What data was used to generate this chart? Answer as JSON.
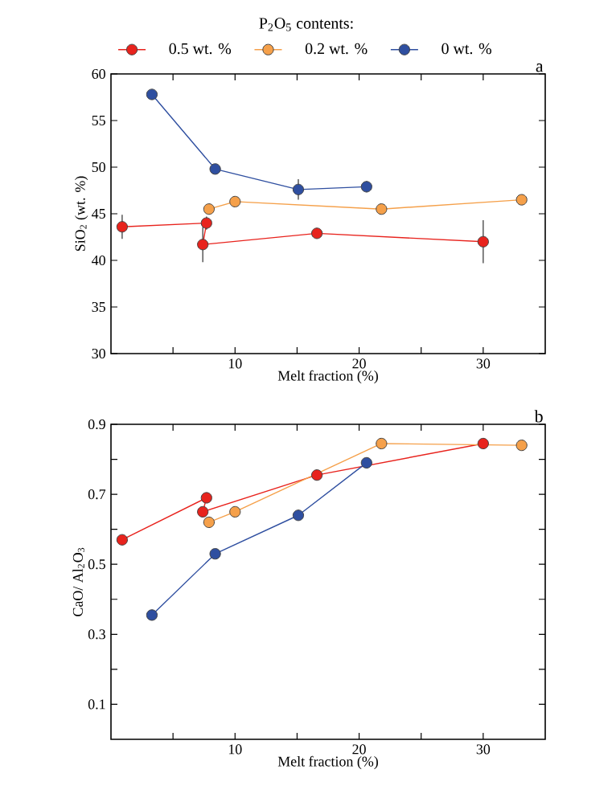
{
  "chart_data": [
    {
      "type": "line",
      "legend_title": "P$_{2}$O$_{5}$ contents:",
      "xlabel": "Melt fraction (%)",
      "ylabel": "SiO$_{2}$ (wt. %)",
      "annotations": [
        "a"
      ],
      "legend": "top",
      "marker": "circle",
      "line_style": "solid",
      "grid": false,
      "xlim": [
        0,
        35
      ],
      "xticks": [
        {
          "value": 5,
          "label": null
        },
        10,
        {
          "value": 15,
          "label": null
        },
        20,
        {
          "value": 25,
          "label": null
        },
        30
      ],
      "ylim": [
        30,
        60
      ],
      "yticks": [
        30,
        35,
        40,
        45,
        50,
        55,
        60
      ],
      "series": [
        {
          "name": "0.5 wt. %",
          "color": "#e8231d",
          "x": [
            0.9,
            7.7,
            7.4,
            16.6,
            30.0
          ],
          "values": [
            43.6,
            44.0,
            41.7,
            42.9,
            42.0
          ],
          "errors": [
            1.3,
            0.7,
            1.9,
            null,
            2.3
          ]
        },
        {
          "name": "0.2 wt. %",
          "color": "#f5a04a",
          "x": [
            7.9,
            10.0,
            21.8,
            33.1
          ],
          "values": [
            45.5,
            46.3,
            45.5,
            46.5
          ]
        },
        {
          "name": "0 wt. %",
          "color": "#2f4fa0",
          "x": [
            3.3,
            8.4,
            15.1,
            20.6
          ],
          "values": [
            57.8,
            49.8,
            47.6,
            47.9
          ],
          "errors": [
            null,
            null,
            1.1,
            0.6
          ]
        }
      ]
    },
    {
      "type": "line",
      "xlabel": "Melt fraction (%)",
      "ylabel": "CaO/ Al$_{2}$O$_{3}$",
      "annotations": [
        "b"
      ],
      "marker": "circle",
      "line_style": "solid",
      "grid": false,
      "xlim": [
        0,
        35
      ],
      "xticks": [
        {
          "value": 5,
          "label": null
        },
        10,
        {
          "value": 15,
          "label": null
        },
        20,
        {
          "value": 25,
          "label": null
        },
        30
      ],
      "ylim": [
        0,
        0.9
      ],
      "yticks": [
        {
          "value": 0.1,
          "label": "0.1"
        },
        {
          "value": 0.2,
          "label": null
        },
        {
          "value": 0.3,
          "label": "0.3"
        },
        {
          "value": 0.4,
          "label": null
        },
        {
          "value": 0.5,
          "label": "0.5"
        },
        {
          "value": 0.6,
          "label": null
        },
        {
          "value": 0.7,
          "label": "0.7"
        },
        {
          "value": 0.8,
          "label": null
        },
        {
          "value": 0.9,
          "label": "0.9"
        }
      ],
      "series": [
        {
          "color": "#e8231d",
          "x": [
            0.9,
            7.7,
            7.4,
            16.6,
            30.0
          ],
          "values": [
            0.57,
            0.69,
            0.65,
            0.755,
            0.845
          ]
        },
        {
          "color": "#f5a04a",
          "x": [
            7.9,
            10.0,
            21.8,
            33.1
          ],
          "values": [
            0.62,
            0.65,
            0.845,
            0.84
          ]
        },
        {
          "color": "#2f4fa0",
          "x": [
            3.3,
            8.4,
            15.1,
            20.6
          ],
          "values": [
            0.355,
            0.53,
            0.64,
            0.79
          ]
        }
      ]
    }
  ]
}
